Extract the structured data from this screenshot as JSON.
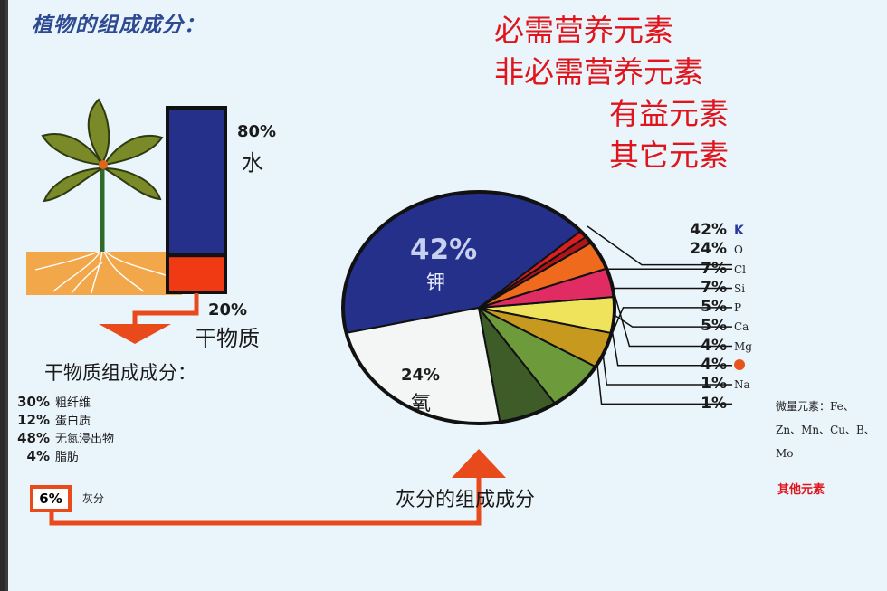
{
  "title": "植物的组成成分：",
  "categories": [
    "必需营养元素",
    "非必需营养元素",
    "有益元素",
    "其它元素"
  ],
  "water": {
    "percent": "80%",
    "label": "水",
    "value": 80
  },
  "dry_matter": {
    "percent": "20%",
    "label": "干物质",
    "value": 20
  },
  "dry_matter_heading": "干物质组成成分：",
  "dry_matter_items": [
    {
      "percent": "30%",
      "label": "粗纤维"
    },
    {
      "percent": "12%",
      "label": "蛋白质"
    },
    {
      "percent": "48%",
      "label": "无氮浸出物"
    },
    {
      "percent": "4%",
      "label": "脂肪"
    }
  ],
  "ash": {
    "percent": "6%",
    "label": "灰分"
  },
  "ash_heading": "灰分的组成成分",
  "pie_labels": {
    "k_percent": "42%",
    "k_label": "钾",
    "o_percent": "24%",
    "o_label": "氧"
  },
  "legend": [
    {
      "percent": "42%",
      "symbol": "K",
      "color": "#24308a"
    },
    {
      "percent": "24%",
      "symbol": "O",
      "color": "#f4f6f6"
    },
    {
      "percent": "7%",
      "symbol": "Cl",
      "color": "#3d5c28"
    },
    {
      "percent": "7%",
      "symbol": "Si",
      "color": "#6d9a3a"
    },
    {
      "percent": "5%",
      "symbol": "P",
      "color": "#c79a1f"
    },
    {
      "percent": "5%",
      "symbol": "Ca",
      "color": "#efe35c"
    },
    {
      "percent": "4%",
      "symbol": "Mg",
      "color": "#e02c62"
    },
    {
      "percent": "4%",
      "symbol": "",
      "color": "#ef6a1c"
    },
    {
      "percent": "1%",
      "symbol": "Na",
      "color": "#b0151a"
    },
    {
      "percent": "1%",
      "symbol": "",
      "color": "#d8201e"
    }
  ],
  "trace_note": [
    "微量元素：Fe、",
    "Zn、Mn、Cu、B、",
    "Mo"
  ],
  "other_elements": "其他元素",
  "chart_data": {
    "type": "pie",
    "categories": [
      "K",
      "O",
      "Cl",
      "Si",
      "P",
      "Ca",
      "Mg",
      "",
      "Na",
      "微量元素"
    ],
    "values": [
      42,
      24,
      7,
      7,
      5,
      5,
      4,
      4,
      1,
      1
    ]
  }
}
